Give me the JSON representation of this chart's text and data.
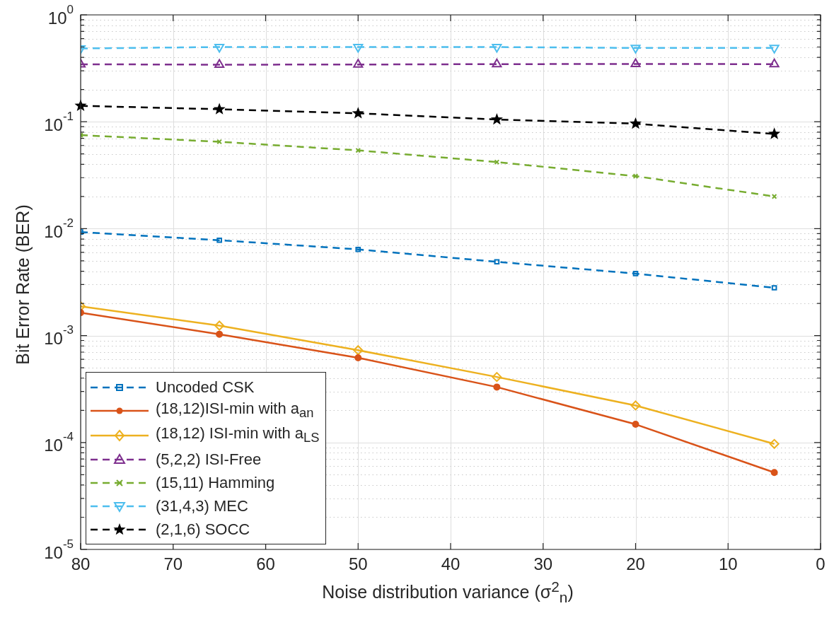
{
  "chart_data": {
    "type": "line",
    "xlabel": "Noise distribution variance (σ$^{2}$$_{n}$)",
    "ylabel": "Bit Error Rate (BER)",
    "x": [
      80,
      65,
      50,
      35,
      20,
      5
    ],
    "xlim": [
      80,
      0
    ],
    "xticks": [
      80,
      70,
      60,
      50,
      40,
      30,
      20,
      10,
      0
    ],
    "ylim": [
      1e-05,
      1
    ],
    "log": "y",
    "grid": true,
    "legend": "bottom left",
    "yticks": [
      {
        "value": 1e-05,
        "label": "10$^{-5}$"
      },
      {
        "value": 2e-05,
        "label": null
      },
      {
        "value": 3e-05,
        "label": null
      },
      {
        "value": 4e-05,
        "label": null
      },
      {
        "value": 5e-05,
        "label": null
      },
      {
        "value": 6e-05,
        "label": null
      },
      {
        "value": 7e-05,
        "label": null
      },
      {
        "value": 8e-05,
        "label": null
      },
      {
        "value": 9e-05,
        "label": null
      },
      {
        "value": 0.0001,
        "label": "10$^{-4}$"
      },
      {
        "value": 0.0002,
        "label": null
      },
      {
        "value": 0.0003,
        "label": null
      },
      {
        "value": 0.0004,
        "label": null
      },
      {
        "value": 0.0005,
        "label": null
      },
      {
        "value": 0.0006,
        "label": null
      },
      {
        "value": 0.0007,
        "label": null
      },
      {
        "value": 0.0008,
        "label": null
      },
      {
        "value": 0.0009,
        "label": null
      },
      {
        "value": 0.001,
        "label": "10$^{-3}$"
      },
      {
        "value": 0.002,
        "label": null
      },
      {
        "value": 0.003,
        "label": null
      },
      {
        "value": 0.004,
        "label": null
      },
      {
        "value": 0.005,
        "label": null
      },
      {
        "value": 0.006,
        "label": null
      },
      {
        "value": 0.007,
        "label": null
      },
      {
        "value": 0.008,
        "label": null
      },
      {
        "value": 0.009,
        "label": null
      },
      {
        "value": 0.01,
        "label": "10$^{-2}$"
      },
      {
        "value": 0.02,
        "label": null
      },
      {
        "value": 0.03,
        "label": null
      },
      {
        "value": 0.04,
        "label": null
      },
      {
        "value": 0.05,
        "label": null
      },
      {
        "value": 0.06,
        "label": null
      },
      {
        "value": 0.07,
        "label": null
      },
      {
        "value": 0.08,
        "label": null
      },
      {
        "value": 0.09,
        "label": null
      },
      {
        "value": 0.1,
        "label": "10$^{-1}$"
      },
      {
        "value": 0.2,
        "label": null
      },
      {
        "value": 0.3,
        "label": null
      },
      {
        "value": 0.4,
        "label": null
      },
      {
        "value": 0.5,
        "label": null
      },
      {
        "value": 0.6,
        "label": null
      },
      {
        "value": 0.7,
        "label": null
      },
      {
        "value": 0.8,
        "label": null
      },
      {
        "value": 0.9,
        "label": null
      },
      {
        "value": 1,
        "label": "10$^{0}$"
      }
    ],
    "series": [
      {
        "name": "Uncoded CSK",
        "color": "#0072bd",
        "marker": "square",
        "line_style": "dashed",
        "values": [
          0.0093,
          0.0078,
          0.0064,
          0.0049,
          0.0038,
          0.0028
        ]
      },
      {
        "name": "(18,12)ISI-min with a$_{an}$",
        "color": "#d95319",
        "marker": "circle",
        "line_style": "solid",
        "values": [
          0.00164,
          0.00103,
          0.00062,
          0.00033,
          0.000148,
          5.24e-05
        ]
      },
      {
        "name": "(18,12) ISI-min with a$_{LS}$",
        "color": "#edb120",
        "marker": "diamond",
        "line_style": "solid",
        "values": [
          0.00188,
          0.00124,
          0.00073,
          0.00041,
          0.000222,
          9.7e-05
        ]
      },
      {
        "name": "(5,2,2) ISI-Free",
        "color": "#7e2f8e",
        "marker": "triangle",
        "line_style": "dashed",
        "values": [
          0.345,
          0.342,
          0.343,
          0.346,
          0.347,
          0.346
        ]
      },
      {
        "name": "(15,11) Hamming",
        "color": "#77ac30",
        "marker": "cross",
        "line_style": "dashed",
        "values": [
          0.075,
          0.065,
          0.054,
          0.042,
          0.031,
          0.02
        ]
      },
      {
        "name": "(31,4,3) MEC",
        "color": "#4dbeee",
        "marker": "triangle-down",
        "line_style": "dashed",
        "values": [
          0.485,
          0.5,
          0.5,
          0.5,
          0.49,
          0.49
        ]
      },
      {
        "name": "(2,1,6) SOCC",
        "color": "#000000",
        "marker": "star",
        "line_style": "dashed",
        "values": [
          0.141,
          0.131,
          0.12,
          0.105,
          0.096,
          0.077
        ]
      }
    ]
  }
}
